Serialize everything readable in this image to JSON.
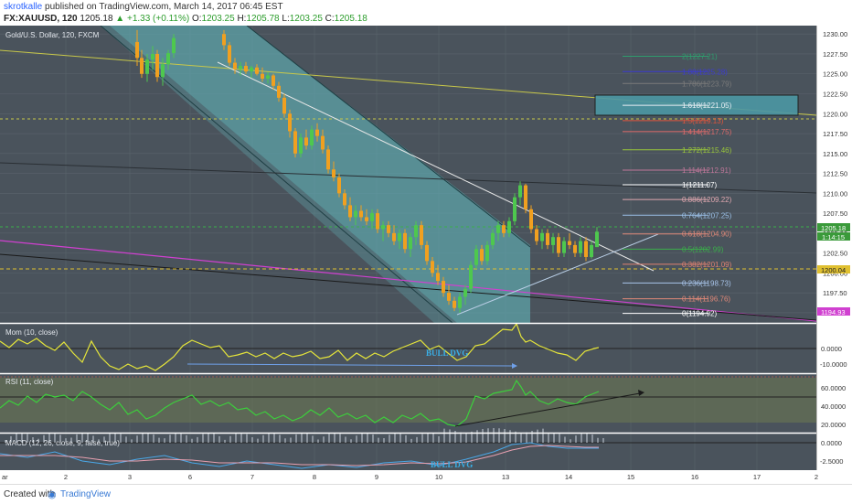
{
  "header": {
    "username": "skrotkalle",
    "published_text": "published on TradingView.com, March 14, 2017 06:45 EST",
    "symbol": "FX:XAUUSD, 120",
    "last": "1205.18",
    "change": "▲ +1.33 (+0.11%)",
    "o_label": "O:",
    "o_val": "1203.25",
    "h_label": "H:",
    "h_val": "1205.78",
    "l_label": "L:",
    "l_val": "1203.25",
    "c_label": "C:",
    "c_val": "1205.18"
  },
  "panes": {
    "main_title": "Gold/U.S. Dollar, 120, FXCM",
    "mom_title": "Mom (10, close)",
    "rsi_title": "RSI (11, close)",
    "macd_title": "MACD (12, 26, close, 9, false, true)"
  },
  "annotations": {
    "bull_dvg_1": "BULL DVG",
    "bull_dvg_2": "BULL DVG"
  },
  "price_axis": {
    "ticks": [
      "1230.00",
      "1227.50",
      "1225.00",
      "1222.50",
      "1220.00",
      "1217.50",
      "1215.00",
      "1212.50",
      "1210.00",
      "1207.50",
      "1205.00",
      "1202.50",
      "1200.00",
      "1197.50",
      "1195.00"
    ],
    "last_price": "1205.18",
    "countdown": "1:14:15",
    "line_1200": "1200.04",
    "line_1194": "1194.93"
  },
  "mom_axis": [
    "0.0000",
    "-10.0000"
  ],
  "rsi_axis": [
    "60.0000",
    "40.0000",
    "20.0000"
  ],
  "macd_axis": [
    "0.0000",
    "-2.5000"
  ],
  "time_axis": [
    "ar",
    "2",
    "3",
    "6",
    "7",
    "8",
    "9",
    "10",
    "13",
    "14",
    "15",
    "16",
    "17",
    "2"
  ],
  "fib_levels": [
    {
      "label": "2(1227.21)",
      "value": 1227.21,
      "color": "#2e9e6e"
    },
    {
      "label": "1.88(1225.28)",
      "value": 1225.28,
      "color": "#3b3bd0"
    },
    {
      "label": "1.786(1223.79)",
      "value": 1223.79,
      "color": "#7a7a7a"
    },
    {
      "label": "1.618(1221.05)",
      "value": 1221.05,
      "color": "#e8eef4"
    },
    {
      "label": "1.5(1219.13)",
      "value": 1219.13,
      "color": "#e0553c"
    },
    {
      "label": "1.414(1217.75)",
      "value": 1217.75,
      "color": "#e06a6a"
    },
    {
      "label": "1.272(1215.46)",
      "value": 1215.46,
      "color": "#9ac83a"
    },
    {
      "label": "1.114(1212.91)",
      "value": 1212.91,
      "color": "#c0779a"
    },
    {
      "label": "1(1211.07)",
      "value": 1211.07,
      "color": "#ffffff"
    },
    {
      "label": "0.886(1209.22)",
      "value": 1209.22,
      "color": "#e0a8b0"
    },
    {
      "label": "0.764(1207.25)",
      "value": 1207.25,
      "color": "#9cc2ea"
    },
    {
      "label": "0.618(1204.90)",
      "value": 1204.9,
      "color": "#e08878"
    },
    {
      "label": "0.5(1202.99)",
      "value": 1202.99,
      "color": "#3ab04a"
    },
    {
      "label": "0.382(1201.09)",
      "value": 1201.09,
      "color": "#e08070"
    },
    {
      "label": "0.236(1198.73)",
      "value": 1198.73,
      "color": "#a8c4ea"
    },
    {
      "label": "0.114(1196.76)",
      "value": 1196.76,
      "color": "#e08878"
    },
    {
      "label": "0(1194.92)",
      "value": 1194.92,
      "color": "#ffffff"
    }
  ],
  "chart_data": {
    "type": "candlestick",
    "title": "Gold/U.S. Dollar, 120, FXCM",
    "ylim": [
      1194,
      1231
    ],
    "candles": [
      {
        "x": 150,
        "o": 1229.0,
        "h": 1230.5,
        "l": 1226.0,
        "c": 1227.0
      },
      {
        "x": 155,
        "o": 1227.0,
        "h": 1228.0,
        "l": 1224.5,
        "c": 1225.0
      },
      {
        "x": 161,
        "o": 1225.0,
        "h": 1227.5,
        "l": 1224.0,
        "c": 1226.8
      },
      {
        "x": 167,
        "o": 1226.8,
        "h": 1228.5,
        "l": 1225.5,
        "c": 1227.5
      },
      {
        "x": 172,
        "o": 1227.5,
        "h": 1228.0,
        "l": 1224.0,
        "c": 1224.6
      },
      {
        "x": 178,
        "o": 1224.6,
        "h": 1227.0,
        "l": 1223.5,
        "c": 1226.2
      },
      {
        "x": 184,
        "o": 1226.2,
        "h": 1228.0,
        "l": 1225.5,
        "c": 1227.6
      },
      {
        "x": 190,
        "o": 1227.6,
        "h": 1230.0,
        "l": 1227.0,
        "c": 1229.5
      },
      {
        "x": 245,
        "o": 1230.0,
        "h": 1230.5,
        "l": 1228.0,
        "c": 1228.6
      },
      {
        "x": 251,
        "o": 1228.6,
        "h": 1229.0,
        "l": 1226.0,
        "c": 1226.4
      },
      {
        "x": 257,
        "o": 1226.4,
        "h": 1227.0,
        "l": 1225.0,
        "c": 1225.6
      },
      {
        "x": 263,
        "o": 1225.6,
        "h": 1226.5,
        "l": 1224.8,
        "c": 1226.0
      },
      {
        "x": 269,
        "o": 1226.0,
        "h": 1226.5,
        "l": 1225.0,
        "c": 1225.3
      },
      {
        "x": 275,
        "o": 1225.3,
        "h": 1226.0,
        "l": 1224.5,
        "c": 1225.8
      },
      {
        "x": 281,
        "o": 1225.8,
        "h": 1226.2,
        "l": 1224.8,
        "c": 1225.0
      },
      {
        "x": 287,
        "o": 1225.0,
        "h": 1225.8,
        "l": 1224.0,
        "c": 1224.4
      },
      {
        "x": 293,
        "o": 1224.4,
        "h": 1225.2,
        "l": 1223.8,
        "c": 1224.8
      },
      {
        "x": 299,
        "o": 1224.8,
        "h": 1225.0,
        "l": 1223.0,
        "c": 1223.5
      },
      {
        "x": 305,
        "o": 1223.5,
        "h": 1224.0,
        "l": 1221.5,
        "c": 1222.0
      },
      {
        "x": 311,
        "o": 1222.0,
        "h": 1222.5,
        "l": 1219.5,
        "c": 1220.0
      },
      {
        "x": 317,
        "o": 1220.0,
        "h": 1220.5,
        "l": 1217.0,
        "c": 1217.8
      },
      {
        "x": 323,
        "o": 1217.8,
        "h": 1218.2,
        "l": 1214.5,
        "c": 1215.0
      },
      {
        "x": 329,
        "o": 1215.0,
        "h": 1217.5,
        "l": 1214.5,
        "c": 1217.0
      },
      {
        "x": 335,
        "o": 1217.0,
        "h": 1218.0,
        "l": 1215.5,
        "c": 1216.0
      },
      {
        "x": 341,
        "o": 1216.0,
        "h": 1218.5,
        "l": 1215.5,
        "c": 1218.0
      },
      {
        "x": 347,
        "o": 1218.0,
        "h": 1218.8,
        "l": 1216.5,
        "c": 1217.2
      },
      {
        "x": 353,
        "o": 1217.2,
        "h": 1218.0,
        "l": 1215.0,
        "c": 1215.5
      },
      {
        "x": 359,
        "o": 1215.5,
        "h": 1216.0,
        "l": 1212.5,
        "c": 1213.0
      },
      {
        "x": 365,
        "o": 1213.0,
        "h": 1214.0,
        "l": 1211.5,
        "c": 1212.0
      },
      {
        "x": 371,
        "o": 1212.0,
        "h": 1212.5,
        "l": 1209.5,
        "c": 1210.0
      },
      {
        "x": 377,
        "o": 1210.0,
        "h": 1210.5,
        "l": 1208.0,
        "c": 1208.5
      },
      {
        "x": 383,
        "o": 1208.5,
        "h": 1209.5,
        "l": 1206.5,
        "c": 1207.0
      },
      {
        "x": 389,
        "o": 1207.0,
        "h": 1208.5,
        "l": 1206.0,
        "c": 1207.8
      },
      {
        "x": 395,
        "o": 1207.8,
        "h": 1208.5,
        "l": 1206.5,
        "c": 1207.0
      },
      {
        "x": 401,
        "o": 1207.0,
        "h": 1208.0,
        "l": 1206.0,
        "c": 1206.5
      },
      {
        "x": 407,
        "o": 1206.5,
        "h": 1208.0,
        "l": 1205.5,
        "c": 1207.5
      },
      {
        "x": 413,
        "o": 1207.5,
        "h": 1208.0,
        "l": 1205.0,
        "c": 1205.5
      },
      {
        "x": 419,
        "o": 1205.5,
        "h": 1206.5,
        "l": 1204.0,
        "c": 1206.0
      },
      {
        "x": 425,
        "o": 1206.0,
        "h": 1206.5,
        "l": 1204.5,
        "c": 1205.0
      },
      {
        "x": 431,
        "o": 1205.0,
        "h": 1206.0,
        "l": 1203.5,
        "c": 1204.0
      },
      {
        "x": 437,
        "o": 1204.0,
        "h": 1205.5,
        "l": 1203.0,
        "c": 1205.0
      },
      {
        "x": 443,
        "o": 1205.0,
        "h": 1205.5,
        "l": 1202.5,
        "c": 1203.0
      },
      {
        "x": 449,
        "o": 1203.0,
        "h": 1205.0,
        "l": 1202.0,
        "c": 1204.5
      },
      {
        "x": 455,
        "o": 1204.5,
        "h": 1206.5,
        "l": 1203.5,
        "c": 1206.0
      },
      {
        "x": 461,
        "o": 1206.0,
        "h": 1206.5,
        "l": 1203.0,
        "c": 1203.5
      },
      {
        "x": 467,
        "o": 1203.5,
        "h": 1204.0,
        "l": 1201.0,
        "c": 1201.5
      },
      {
        "x": 473,
        "o": 1201.5,
        "h": 1202.0,
        "l": 1199.5,
        "c": 1200.0
      },
      {
        "x": 479,
        "o": 1200.0,
        "h": 1201.0,
        "l": 1198.5,
        "c": 1199.0
      },
      {
        "x": 485,
        "o": 1199.0,
        "h": 1199.5,
        "l": 1197.0,
        "c": 1197.5
      },
      {
        "x": 491,
        "o": 1197.5,
        "h": 1198.5,
        "l": 1196.0,
        "c": 1196.5
      },
      {
        "x": 497,
        "o": 1196.5,
        "h": 1197.0,
        "l": 1195.2,
        "c": 1195.6
      },
      {
        "x": 503,
        "o": 1195.6,
        "h": 1197.5,
        "l": 1195.0,
        "c": 1197.0
      },
      {
        "x": 509,
        "o": 1197.0,
        "h": 1198.5,
        "l": 1196.0,
        "c": 1198.0
      },
      {
        "x": 515,
        "o": 1198.0,
        "h": 1201.5,
        "l": 1197.5,
        "c": 1201.0
      },
      {
        "x": 521,
        "o": 1201.0,
        "h": 1203.5,
        "l": 1200.5,
        "c": 1203.0
      },
      {
        "x": 527,
        "o": 1203.0,
        "h": 1203.5,
        "l": 1201.0,
        "c": 1201.5
      },
      {
        "x": 533,
        "o": 1201.5,
        "h": 1204.0,
        "l": 1201.0,
        "c": 1203.5
      },
      {
        "x": 539,
        "o": 1203.5,
        "h": 1205.5,
        "l": 1203.0,
        "c": 1205.0
      },
      {
        "x": 545,
        "o": 1205.0,
        "h": 1206.5,
        "l": 1204.0,
        "c": 1206.0
      },
      {
        "x": 551,
        "o": 1206.0,
        "h": 1206.5,
        "l": 1204.5,
        "c": 1205.0
      },
      {
        "x": 557,
        "o": 1205.0,
        "h": 1207.0,
        "l": 1204.5,
        "c": 1206.5
      },
      {
        "x": 563,
        "o": 1206.5,
        "h": 1210.0,
        "l": 1206.0,
        "c": 1209.5
      },
      {
        "x": 569,
        "o": 1209.5,
        "h": 1211.5,
        "l": 1208.5,
        "c": 1211.0
      },
      {
        "x": 575,
        "o": 1211.0,
        "h": 1211.2,
        "l": 1207.5,
        "c": 1208.0
      },
      {
        "x": 581,
        "o": 1208.0,
        "h": 1208.5,
        "l": 1205.0,
        "c": 1205.5
      },
      {
        "x": 587,
        "o": 1205.5,
        "h": 1206.0,
        "l": 1203.5,
        "c": 1204.0
      },
      {
        "x": 593,
        "o": 1204.0,
        "h": 1205.5,
        "l": 1203.0,
        "c": 1205.0
      },
      {
        "x": 599,
        "o": 1205.0,
        "h": 1205.5,
        "l": 1203.0,
        "c": 1203.5
      },
      {
        "x": 605,
        "o": 1203.5,
        "h": 1205.0,
        "l": 1202.5,
        "c": 1204.5
      },
      {
        "x": 611,
        "o": 1204.5,
        "h": 1205.0,
        "l": 1202.0,
        "c": 1202.5
      },
      {
        "x": 617,
        "o": 1202.5,
        "h": 1204.5,
        "l": 1202.0,
        "c": 1204.0
      },
      {
        "x": 623,
        "o": 1204.0,
        "h": 1205.0,
        "l": 1203.0,
        "c": 1203.5
      },
      {
        "x": 629,
        "o": 1203.5,
        "h": 1204.0,
        "l": 1202.0,
        "c": 1202.5
      },
      {
        "x": 635,
        "o": 1202.5,
        "h": 1204.5,
        "l": 1202.0,
        "c": 1204.0
      },
      {
        "x": 641,
        "o": 1204.0,
        "h": 1204.5,
        "l": 1201.5,
        "c": 1202.0
      },
      {
        "x": 647,
        "o": 1202.0,
        "h": 1204.0,
        "l": 1201.8,
        "c": 1203.5
      },
      {
        "x": 653,
        "o": 1203.25,
        "h": 1205.78,
        "l": 1203.25,
        "c": 1205.18
      }
    ]
  }
}
